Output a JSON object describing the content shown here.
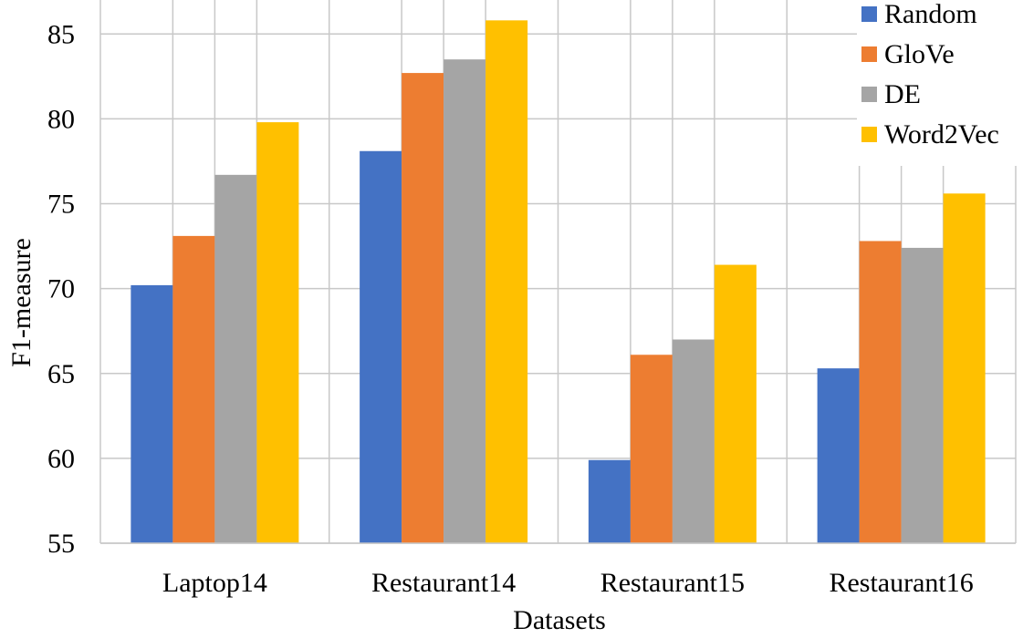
{
  "chart_data": {
    "type": "bar",
    "title": "",
    "xlabel": "Datasets",
    "ylabel": "F1-measure",
    "ylim": [
      55,
      87
    ],
    "yticks": [
      55,
      60,
      65,
      70,
      75,
      80,
      85
    ],
    "grid": true,
    "legend_position": "top-right",
    "categories": [
      "Laptop14",
      "Restaurant14",
      "Restaurant15",
      "Restaurant16"
    ],
    "series": [
      {
        "name": "Random",
        "color": "#4472C4",
        "values": [
          70.2,
          78.1,
          59.9,
          65.3
        ]
      },
      {
        "name": "GloVe",
        "color": "#ED7D31",
        "values": [
          73.1,
          82.7,
          66.1,
          72.8
        ]
      },
      {
        "name": "DE",
        "color": "#A5A5A5",
        "values": [
          76.7,
          83.5,
          67.0,
          72.4
        ]
      },
      {
        "name": "Word2Vec",
        "color": "#FFC000",
        "values": [
          79.8,
          85.8,
          71.4,
          75.6
        ]
      }
    ]
  }
}
